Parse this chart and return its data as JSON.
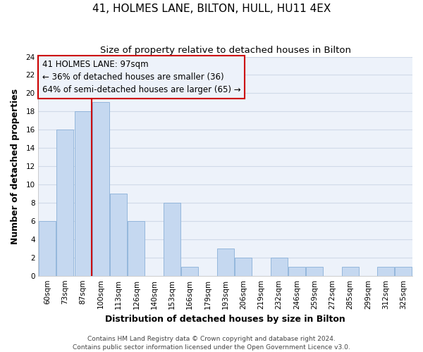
{
  "title": "41, HOLMES LANE, BILTON, HULL, HU11 4EX",
  "subtitle": "Size of property relative to detached houses in Bilton",
  "xlabel": "Distribution of detached houses by size in Bilton",
  "ylabel": "Number of detached properties",
  "bar_color": "#c5d8f0",
  "bar_edge_color": "#8ab0d8",
  "grid_color": "#d0dae8",
  "annotation_box_color": "#cc0000",
  "vline_color": "#cc0000",
  "background_color": "#ffffff",
  "plot_bg_color": "#edf2fa",
  "bins": [
    "60sqm",
    "73sqm",
    "87sqm",
    "100sqm",
    "113sqm",
    "126sqm",
    "140sqm",
    "153sqm",
    "166sqm",
    "179sqm",
    "193sqm",
    "206sqm",
    "219sqm",
    "232sqm",
    "246sqm",
    "259sqm",
    "272sqm",
    "285sqm",
    "299sqm",
    "312sqm",
    "325sqm"
  ],
  "values": [
    6,
    16,
    18,
    19,
    9,
    6,
    0,
    8,
    1,
    0,
    3,
    2,
    0,
    2,
    1,
    1,
    0,
    1,
    0,
    1,
    1
  ],
  "ylim": [
    0,
    24
  ],
  "yticks": [
    0,
    2,
    4,
    6,
    8,
    10,
    12,
    14,
    16,
    18,
    20,
    22,
    24
  ],
  "vline_x_index": 3,
  "annotation_title": "41 HOLMES LANE: 97sqm",
  "annotation_line1": "← 36% of detached houses are smaller (36)",
  "annotation_line2": "64% of semi-detached houses are larger (65) →",
  "footer1": "Contains HM Land Registry data © Crown copyright and database right 2024.",
  "footer2": "Contains public sector information licensed under the Open Government Licence v3.0.",
  "title_fontsize": 11,
  "subtitle_fontsize": 9.5,
  "axis_label_fontsize": 9,
  "tick_fontsize": 7.5,
  "annotation_fontsize": 8.5,
  "footer_fontsize": 6.5
}
